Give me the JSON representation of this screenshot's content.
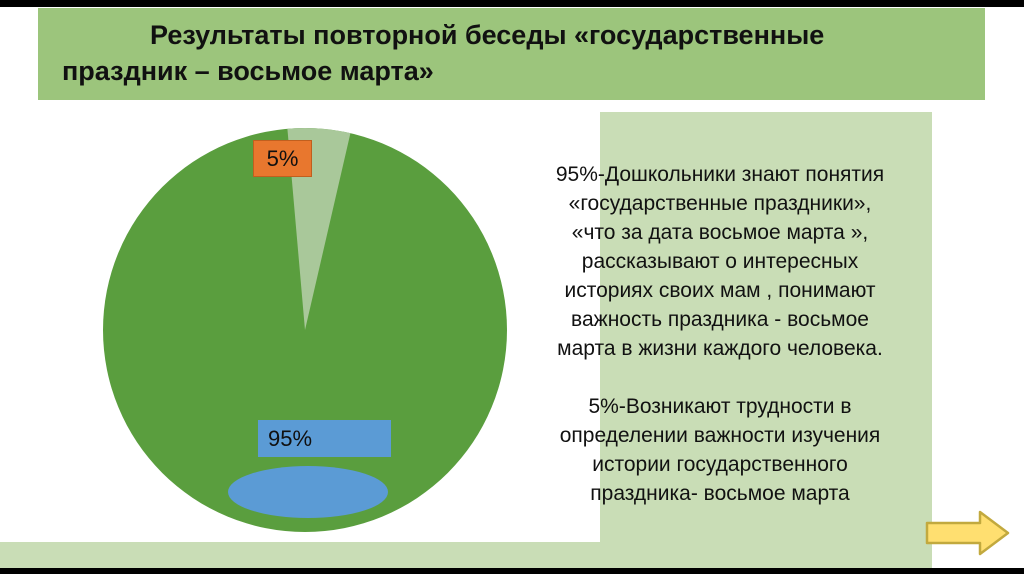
{
  "slide": {
    "title": "Результаты повторной беседы «государственные\nпраздник – восьмое марта»"
  },
  "chart_data": {
    "type": "pie",
    "title": "Результаты повторной беседы «государственные праздник – восьмое марта»",
    "labels": [
      "95%",
      "5%"
    ],
    "values": [
      95,
      5
    ],
    "slice_colors": [
      "#5a9e3e",
      "#a9c89a"
    ],
    "legend_position": "none",
    "data_labels": [
      {
        "text": "95%",
        "style": "blue-box"
      },
      {
        "text": "5%",
        "style": "orange-box"
      }
    ]
  },
  "pie": {
    "label_large": "95%",
    "label_small": "5%"
  },
  "description": {
    "paragraph1": "95%-Дошкольники знают понятия\n«государственные праздники»,\n«что за дата восьмое марта »,\nрассказывают о интересных\nисториях своих мам , понимают\nважность праздника - восьмое\nмарта в жизни каждого человека.",
    "paragraph2": "5%-Возникают трудности в\nопределении важности изучения\nистории государственного\nпраздника- восьмое марта"
  },
  "icons": {
    "next_arrow": "right-arrow"
  },
  "colors": {
    "header_green": "#9cc57c",
    "panel_green": "#c9ddb6",
    "pie_green": "#5a9e3e",
    "pie_light_green": "#a9c89a",
    "label_orange": "#e8772e",
    "label_blue": "#5b9bd5",
    "arrow_yellow": "#ffdf70",
    "arrow_border": "#c2a93e",
    "text": "#111111"
  }
}
